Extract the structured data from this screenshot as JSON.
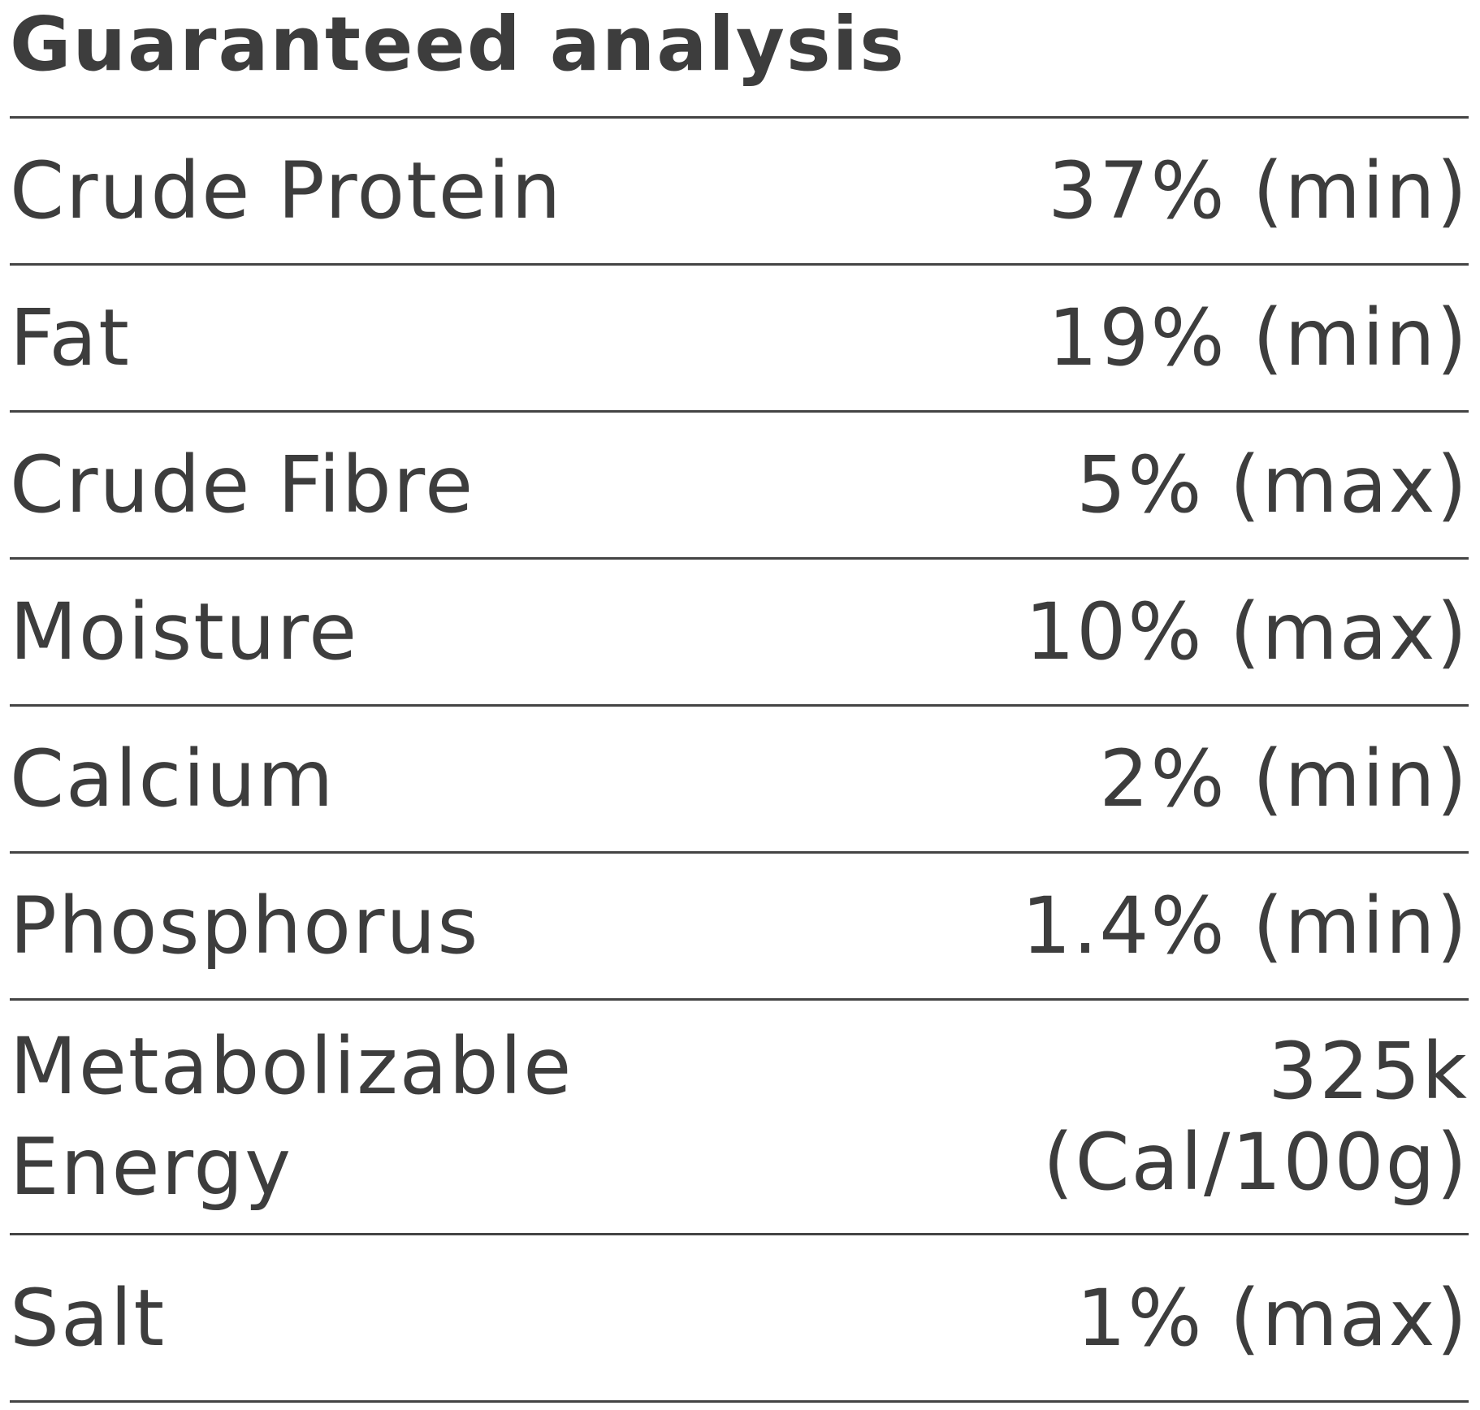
{
  "header": {
    "title": "Guaranteed analysis"
  },
  "table": {
    "rows": [
      [
        "Crude Protein",
        "37% (min)"
      ],
      [
        "Fat",
        "19% (min)"
      ],
      [
        "Crude Fibre",
        "5% (max)"
      ],
      [
        "Moisture",
        "10% (max)"
      ],
      [
        "Calcium",
        "2% (min)"
      ],
      [
        "Phosphorus",
        "1.4% (min)"
      ],
      [
        "Metabolizable Energy",
        "325k (Cal/100g)"
      ],
      [
        "Salt",
        "1% (max)"
      ]
    ]
  }
}
